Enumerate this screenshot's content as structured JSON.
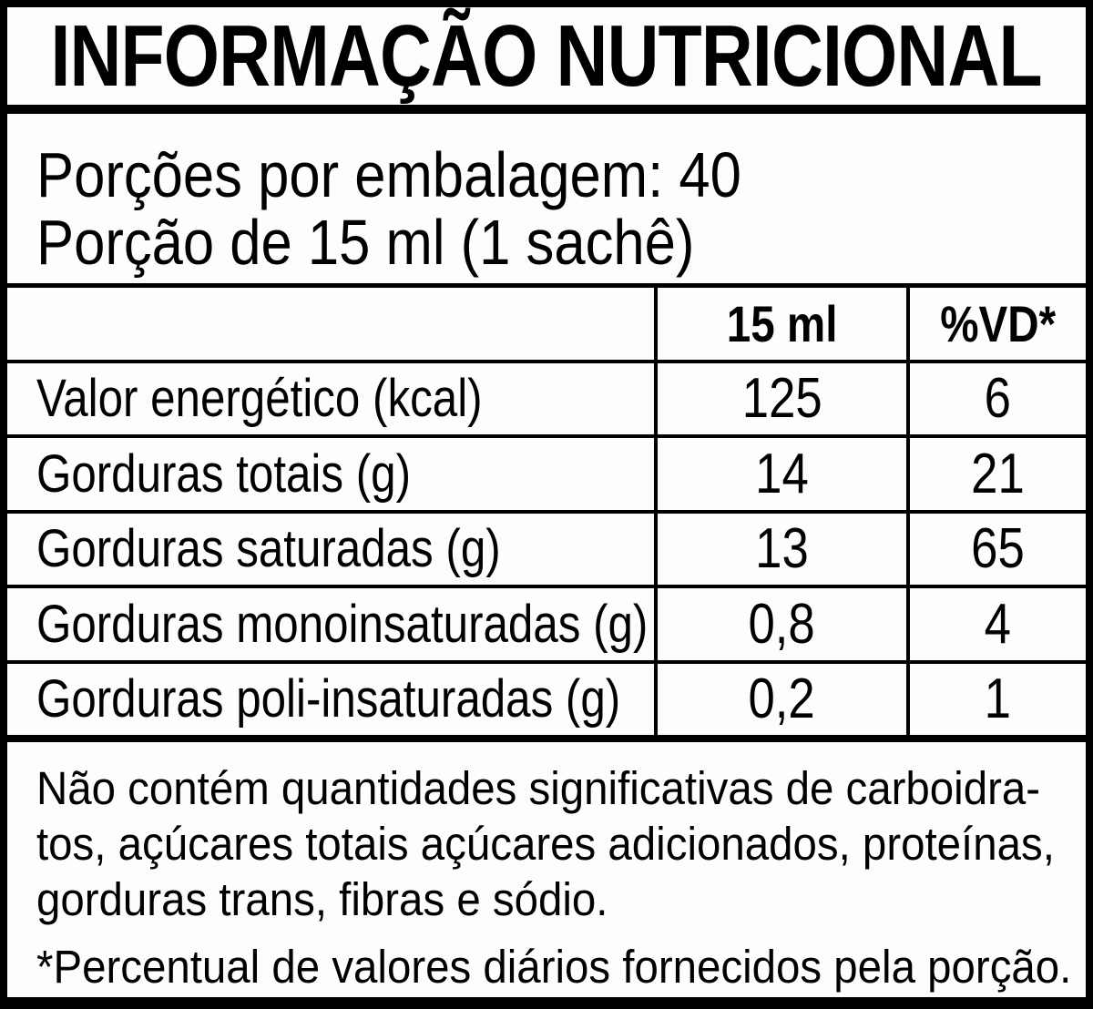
{
  "label": {
    "title": "INFORMAÇÃO NUTRICIONAL",
    "serving": {
      "servings_per_package": "Porções por embalagem: 40",
      "serving_size": "Porção de 15 ml (1 sachê)"
    },
    "table": {
      "amount_header": "15 ml",
      "dv_header": "%VD*",
      "rows": [
        {
          "name": "Valor energético (kcal)",
          "amount": "125",
          "dv": "6"
        },
        {
          "name": "Gorduras totais (g)",
          "amount": "14",
          "dv": "21"
        },
        {
          "name": "Gorduras saturadas (g)",
          "amount": "13",
          "dv": "65"
        },
        {
          "name": "Gorduras monoinsaturadas (g)",
          "amount": "0,8",
          "dv": "4"
        },
        {
          "name": "Gorduras poli-insaturadas (g)",
          "amount": "0,2",
          "dv": "1"
        }
      ]
    },
    "footnote": {
      "lines": [
        "Não contém quantidades significativas de carboidra-",
        "tos, açúcares totais açúcares adicionados, proteínas,",
        "gorduras trans, fibras e sódio."
      ],
      "daily_value_note": "*Percentual de valores diários fornecidos pela porção."
    },
    "colors": {
      "ink": "#000000",
      "background": "#ffffff"
    }
  }
}
